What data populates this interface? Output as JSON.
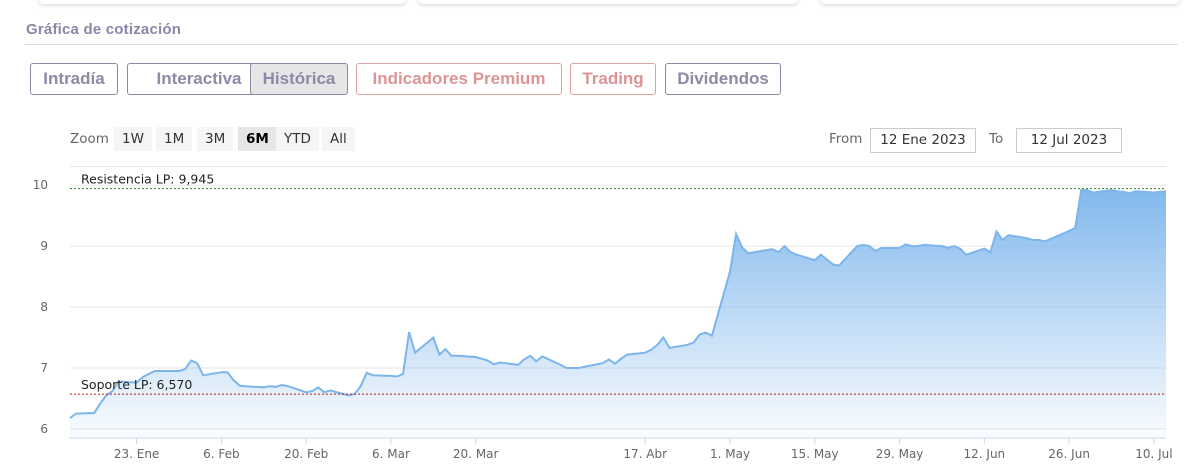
{
  "section_title": "Gráfica de cotización",
  "tabs": [
    {
      "label": "Intradía",
      "style": "purple",
      "active": false
    },
    {
      "label": "Interactiva",
      "style": "purple",
      "active": false
    },
    {
      "label": "Histórica",
      "style": "purple",
      "active": true
    },
    {
      "label": "Indicadores Premium",
      "style": "pink",
      "active": false
    },
    {
      "label": "Trading",
      "style": "pink",
      "active": false
    },
    {
      "label": "Dividendos",
      "style": "purple",
      "active": false
    }
  ],
  "zoom": {
    "label": "Zoom",
    "buttons": [
      "1W",
      "1M",
      "3M",
      "6M",
      "YTD",
      "All"
    ],
    "selected": "6M"
  },
  "range": {
    "from_label": "From",
    "from_value": "12 Ene 2023",
    "to_label": "To",
    "to_value": "12 Jul 2023"
  },
  "colors": {
    "line": "#7cb5ec",
    "resistance": "#2e7d32",
    "support": "#b71c1c",
    "tab_purple": "#8d89a6",
    "tab_pink": "#dc9494"
  },
  "chart_data": {
    "type": "area",
    "x_range": [
      "2023-01-12",
      "2023-07-12"
    ],
    "ylim": [
      5.85,
      10.25
    ],
    "y_ticks": [
      6,
      7,
      8,
      9,
      10
    ],
    "x_ticks": [
      {
        "date": "2023-01-23",
        "label": "23. Ene"
      },
      {
        "date": "2023-02-06",
        "label": "6. Feb"
      },
      {
        "date": "2023-02-20",
        "label": "20. Feb"
      },
      {
        "date": "2023-03-06",
        "label": "6. Mar"
      },
      {
        "date": "2023-03-20",
        "label": "20. Mar"
      },
      {
        "date": "2023-04-17",
        "label": "17. Abr"
      },
      {
        "date": "2023-05-01",
        "label": "1. May"
      },
      {
        "date": "2023-05-15",
        "label": "15. May"
      },
      {
        "date": "2023-05-29",
        "label": "29. May"
      },
      {
        "date": "2023-06-12",
        "label": "12. Jun"
      },
      {
        "date": "2023-06-26",
        "label": "26. Jun"
      },
      {
        "date": "2023-07-10",
        "label": "10. Jul"
      }
    ],
    "series": [
      {
        "x": [
          "2023-01-12",
          "2023-01-13",
          "2023-01-16",
          "2023-01-17",
          "2023-01-18",
          "2023-01-19",
          "2023-01-20",
          "2023-01-23",
          "2023-01-24",
          "2023-01-25",
          "2023-01-26",
          "2023-01-27",
          "2023-01-30",
          "2023-01-31",
          "2023-02-01",
          "2023-02-02",
          "2023-02-03",
          "2023-02-06",
          "2023-02-07",
          "2023-02-08",
          "2023-02-09",
          "2023-02-10",
          "2023-02-13",
          "2023-02-14",
          "2023-02-15",
          "2023-02-16",
          "2023-02-17",
          "2023-02-20",
          "2023-02-21",
          "2023-02-22",
          "2023-02-23",
          "2023-02-24",
          "2023-02-27",
          "2023-02-28",
          "2023-03-01",
          "2023-03-02",
          "2023-03-03",
          "2023-03-06",
          "2023-03-07",
          "2023-03-08",
          "2023-03-09",
          "2023-03-10",
          "2023-03-13",
          "2023-03-14",
          "2023-03-15",
          "2023-03-16",
          "2023-03-17",
          "2023-03-20",
          "2023-03-21",
          "2023-03-22",
          "2023-03-23",
          "2023-03-24",
          "2023-03-27",
          "2023-03-28",
          "2023-03-29",
          "2023-03-30",
          "2023-03-31",
          "2023-04-03",
          "2023-04-04",
          "2023-04-05",
          "2023-04-06",
          "2023-04-10",
          "2023-04-11",
          "2023-04-12",
          "2023-04-13",
          "2023-04-14",
          "2023-04-17",
          "2023-04-18",
          "2023-04-19",
          "2023-04-20",
          "2023-04-21",
          "2023-04-24",
          "2023-04-25",
          "2023-04-26",
          "2023-04-27",
          "2023-04-28",
          "2023-05-01",
          "2023-05-02",
          "2023-05-03",
          "2023-05-04",
          "2023-05-05",
          "2023-05-08",
          "2023-05-09",
          "2023-05-10",
          "2023-05-11",
          "2023-05-12",
          "2023-05-15",
          "2023-05-16",
          "2023-05-17",
          "2023-05-18",
          "2023-05-19",
          "2023-05-22",
          "2023-05-23",
          "2023-05-24",
          "2023-05-25",
          "2023-05-26",
          "2023-05-29",
          "2023-05-30",
          "2023-05-31",
          "2023-06-01",
          "2023-06-02",
          "2023-06-05",
          "2023-06-06",
          "2023-06-07",
          "2023-06-08",
          "2023-06-09",
          "2023-06-12",
          "2023-06-13",
          "2023-06-14",
          "2023-06-15",
          "2023-06-16",
          "2023-06-19",
          "2023-06-20",
          "2023-06-21",
          "2023-06-22",
          "2023-06-23",
          "2023-06-26",
          "2023-06-27",
          "2023-06-28",
          "2023-06-29",
          "2023-06-30",
          "2023-07-03",
          "2023-07-04",
          "2023-07-05",
          "2023-07-06",
          "2023-07-07",
          "2023-07-10",
          "2023-07-11",
          "2023-07-12"
        ],
        "values": [
          6.18,
          6.25,
          6.26,
          6.42,
          6.55,
          6.62,
          6.78,
          6.76,
          6.85,
          6.9,
          6.95,
          6.95,
          6.95,
          6.98,
          7.12,
          7.08,
          6.88,
          6.93,
          6.93,
          6.8,
          6.71,
          6.7,
          6.68,
          6.7,
          6.69,
          6.72,
          6.7,
          6.6,
          6.62,
          6.68,
          6.6,
          6.63,
          6.55,
          6.57,
          6.7,
          6.92,
          6.88,
          6.87,
          6.86,
          6.9,
          7.59,
          7.25,
          7.5,
          7.22,
          7.31,
          7.2,
          7.2,
          7.18,
          7.15,
          7.12,
          7.06,
          7.09,
          7.05,
          7.14,
          7.2,
          7.11,
          7.19,
          7.05,
          7.0,
          7.0,
          7.0,
          7.08,
          7.14,
          7.07,
          7.15,
          7.22,
          7.25,
          7.3,
          7.38,
          7.5,
          7.33,
          7.38,
          7.42,
          7.55,
          7.58,
          7.53,
          8.58,
          9.2,
          8.98,
          8.88,
          8.9,
          8.95,
          8.9,
          9.0,
          8.9,
          8.86,
          8.77,
          8.86,
          8.78,
          8.7,
          8.68,
          9.0,
          9.02,
          9.0,
          8.92,
          8.97,
          8.97,
          9.03,
          9.0,
          9.0,
          9.02,
          9.0,
          8.97,
          9.0,
          8.96,
          8.86,
          8.96,
          8.9,
          9.24,
          9.1,
          9.18,
          9.13,
          9.1,
          9.1,
          9.08,
          9.12,
          9.25,
          9.3,
          9.92,
          9.92,
          9.88,
          9.92,
          9.9,
          9.89,
          9.87,
          9.9,
          9.88,
          9.89,
          9.9
        ]
      }
    ],
    "annotations": [
      {
        "label": "Resistencia LP: 9,945",
        "y": 9.945
      },
      {
        "label": "Soporte LP: 6,570",
        "y": 6.57
      }
    ]
  }
}
